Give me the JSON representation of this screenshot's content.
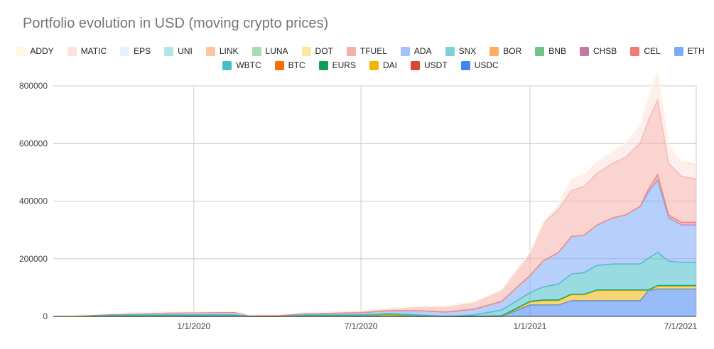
{
  "chart_data": {
    "type": "area",
    "stacked": true,
    "title": "Portfolio evolution in USD (moving crypto prices)",
    "xlabel": "",
    "ylabel": "",
    "x_ticks": [
      "1/1/2020",
      "7/1/2020",
      "1/1/2021",
      "7/1/2021"
    ],
    "y_ticks": [
      "0",
      "200000",
      "400000",
      "600000",
      "800000"
    ],
    "xlim": [
      "2019-08-01",
      "2021-07-01"
    ],
    "ylim": [
      0,
      800000
    ],
    "grid": true,
    "legend_position": "top",
    "x": [
      "2019-08-01",
      "2019-10-01",
      "2019-11-01",
      "2019-12-01",
      "2020-01-01",
      "2020-02-15",
      "2020-03-01",
      "2020-04-01",
      "2020-05-01",
      "2020-06-01",
      "2020-07-01",
      "2020-08-01",
      "2020-09-01",
      "2020-10-01",
      "2020-11-01",
      "2020-12-01",
      "2021-01-01",
      "2021-01-15",
      "2021-02-01",
      "2021-02-15",
      "2021-03-01",
      "2021-03-15",
      "2021-04-01",
      "2021-04-15",
      "2021-05-01",
      "2021-05-10",
      "2021-05-20",
      "2021-06-01",
      "2021-06-15",
      "2021-07-01"
    ],
    "series": [
      {
        "name": "USDC",
        "color": "#4285f4",
        "values": [
          0,
          0,
          0,
          0,
          0,
          0,
          0,
          0,
          0,
          0,
          0,
          0,
          0,
          0,
          0,
          0,
          40000,
          40000,
          40000,
          55000,
          55000,
          55000,
          55000,
          55000,
          55000,
          90000,
          95000,
          95000,
          95000,
          95000
        ]
      },
      {
        "name": "USDT",
        "color": "#db4437",
        "values": [
          0,
          0,
          0,
          0,
          0,
          0,
          0,
          0,
          0,
          0,
          0,
          0,
          0,
          0,
          0,
          0,
          0,
          0,
          0,
          0,
          0,
          0,
          0,
          0,
          0,
          0,
          0,
          0,
          0,
          0
        ]
      },
      {
        "name": "DAI",
        "color": "#f4b400",
        "values": [
          0,
          0,
          0,
          0,
          0,
          0,
          0,
          0,
          0,
          0,
          0,
          5000,
          0,
          0,
          0,
          0,
          10000,
          15000,
          15000,
          20000,
          20000,
          35000,
          35000,
          35000,
          35000,
          0,
          10000,
          10000,
          10000,
          10000
        ]
      },
      {
        "name": "EURS",
        "color": "#0f9d58",
        "values": [
          0,
          5000,
          5000,
          5000,
          5000,
          5000,
          0,
          0,
          5000,
          5000,
          5000,
          5000,
          5000,
          0,
          0,
          2000,
          2000,
          2000,
          2000,
          2000,
          2000,
          2000,
          2000,
          2000,
          2000,
          2000,
          2000,
          2000,
          2000,
          2000
        ]
      },
      {
        "name": "BTC",
        "color": "#ff6d00",
        "values": [
          0,
          0,
          0,
          0,
          0,
          0,
          0,
          0,
          0,
          0,
          0,
          0,
          0,
          0,
          0,
          0,
          0,
          0,
          0,
          0,
          0,
          0,
          0,
          0,
          0,
          0,
          0,
          0,
          0,
          0
        ]
      },
      {
        "name": "WBTC",
        "color": "#46bdc6",
        "values": [
          0,
          0,
          0,
          0,
          0,
          0,
          0,
          0,
          0,
          0,
          0,
          0,
          0,
          0,
          5000,
          20000,
          30000,
          45000,
          55000,
          70000,
          75000,
          85000,
          90000,
          90000,
          90000,
          110000,
          115000,
          85000,
          80000,
          80000
        ]
      },
      {
        "name": "ETH",
        "color": "#7baaf7",
        "values": [
          0,
          3000,
          5000,
          7000,
          8000,
          9000,
          3000,
          3000,
          5000,
          6000,
          8000,
          10000,
          15000,
          15000,
          20000,
          30000,
          60000,
          90000,
          110000,
          130000,
          130000,
          140000,
          160000,
          170000,
          200000,
          230000,
          250000,
          150000,
          130000,
          130000
        ]
      },
      {
        "name": "CEL",
        "color": "#f07b72",
        "values": [
          0,
          0,
          0,
          0,
          0,
          0,
          0,
          0,
          0,
          0,
          0,
          0,
          0,
          0,
          0,
          0,
          0,
          0,
          0,
          0,
          0,
          0,
          0,
          0,
          0,
          10000,
          20000,
          10000,
          10000,
          10000
        ]
      },
      {
        "name": "CHSB",
        "color": "#c27ba0",
        "values": [
          0,
          0,
          0,
          0,
          0,
          0,
          0,
          0,
          0,
          0,
          0,
          0,
          0,
          0,
          0,
          0,
          0,
          0,
          0,
          0,
          0,
          0,
          0,
          0,
          0,
          0,
          0,
          0,
          0,
          0
        ]
      },
      {
        "name": "BNB",
        "color": "#71c287",
        "values": [
          0,
          0,
          0,
          0,
          0,
          0,
          0,
          0,
          0,
          0,
          0,
          0,
          0,
          0,
          0,
          0,
          0,
          0,
          0,
          0,
          0,
          0,
          0,
          0,
          0,
          0,
          0,
          0,
          0,
          0
        ]
      },
      {
        "name": "BOR",
        "color": "#fcad5d",
        "values": [
          0,
          0,
          0,
          0,
          0,
          0,
          0,
          0,
          0,
          0,
          0,
          0,
          0,
          0,
          0,
          0,
          0,
          0,
          0,
          0,
          0,
          0,
          0,
          0,
          0,
          0,
          0,
          0,
          0,
          0
        ]
      },
      {
        "name": "SNX",
        "color": "#7ed1d7",
        "values": [
          0,
          0,
          0,
          0,
          0,
          0,
          0,
          0,
          0,
          0,
          0,
          0,
          0,
          0,
          0,
          0,
          0,
          0,
          0,
          0,
          0,
          0,
          0,
          0,
          0,
          0,
          0,
          0,
          0,
          0
        ]
      },
      {
        "name": "ADA",
        "color": "#a1c2fa",
        "values": [
          0,
          0,
          0,
          0,
          0,
          0,
          0,
          0,
          0,
          0,
          0,
          0,
          0,
          0,
          0,
          0,
          0,
          0,
          0,
          0,
          0,
          0,
          0,
          0,
          0,
          0,
          0,
          0,
          0,
          0
        ]
      },
      {
        "name": "TFUEL",
        "color": "#f6b0aa",
        "values": [
          0,
          1000,
          2000,
          3000,
          3000,
          3000,
          2000,
          3000,
          3000,
          4000,
          6000,
          8000,
          15000,
          20000,
          25000,
          40000,
          80000,
          130000,
          150000,
          160000,
          170000,
          180000,
          190000,
          200000,
          220000,
          240000,
          260000,
          180000,
          160000,
          150000
        ]
      },
      {
        "name": "DOT",
        "color": "#fce8a2",
        "values": [
          0,
          0,
          0,
          0,
          0,
          0,
          0,
          0,
          0,
          0,
          0,
          0,
          0,
          0,
          0,
          0,
          0,
          0,
          0,
          0,
          0,
          0,
          0,
          0,
          0,
          0,
          0,
          0,
          0,
          0
        ]
      },
      {
        "name": "LUNA",
        "color": "#a8dab5",
        "values": [
          0,
          0,
          0,
          0,
          0,
          0,
          0,
          0,
          0,
          0,
          0,
          0,
          0,
          0,
          0,
          0,
          0,
          0,
          0,
          0,
          0,
          0,
          0,
          0,
          0,
          0,
          0,
          0,
          0,
          0
        ]
      },
      {
        "name": "LINK",
        "color": "#fdc69c",
        "values": [
          0,
          0,
          0,
          0,
          0,
          0,
          0,
          0,
          0,
          0,
          0,
          0,
          0,
          0,
          0,
          0,
          0,
          0,
          0,
          0,
          0,
          0,
          0,
          0,
          0,
          0,
          0,
          0,
          0,
          0
        ]
      },
      {
        "name": "UNI",
        "color": "#b3e5e8",
        "values": [
          0,
          0,
          0,
          0,
          0,
          0,
          0,
          0,
          0,
          0,
          0,
          0,
          0,
          0,
          0,
          0,
          0,
          0,
          0,
          0,
          0,
          0,
          0,
          0,
          0,
          0,
          0,
          0,
          0,
          0
        ]
      },
      {
        "name": "EPS",
        "color": "#e8f0fe",
        "values": [
          0,
          0,
          0,
          0,
          0,
          0,
          0,
          0,
          0,
          0,
          0,
          0,
          0,
          0,
          0,
          0,
          0,
          0,
          0,
          0,
          0,
          0,
          0,
          0,
          0,
          0,
          0,
          0,
          0,
          0
        ]
      },
      {
        "name": "MATIC",
        "color": "#fbe1df",
        "values": [
          0,
          0,
          0,
          0,
          0,
          0,
          0,
          0,
          0,
          0,
          0,
          0,
          0,
          0,
          0,
          0,
          0,
          0,
          20000,
          40000,
          40000,
          40000,
          40000,
          50000,
          60000,
          80000,
          100000,
          60000,
          50000,
          50000
        ]
      },
      {
        "name": "ADDY",
        "color": "#fef9e0",
        "values": [
          0,
          0,
          0,
          0,
          0,
          0,
          0,
          0,
          0,
          0,
          0,
          0,
          0,
          0,
          0,
          0,
          0,
          0,
          0,
          0,
          0,
          0,
          0,
          0,
          0,
          0,
          0,
          0,
          0,
          5000
        ]
      }
    ]
  },
  "legend_rows": [
    [
      "ADDY",
      "MATIC",
      "EPS",
      "UNI",
      "LINK",
      "LUNA",
      "DOT",
      "TFUEL",
      "ADA",
      "SNX",
      "BOR",
      "BNB",
      "CHSB",
      "CEL",
      "ETH"
    ],
    [
      "WBTC",
      "BTC",
      "EURS",
      "DAI",
      "USDT",
      "USDC"
    ]
  ]
}
